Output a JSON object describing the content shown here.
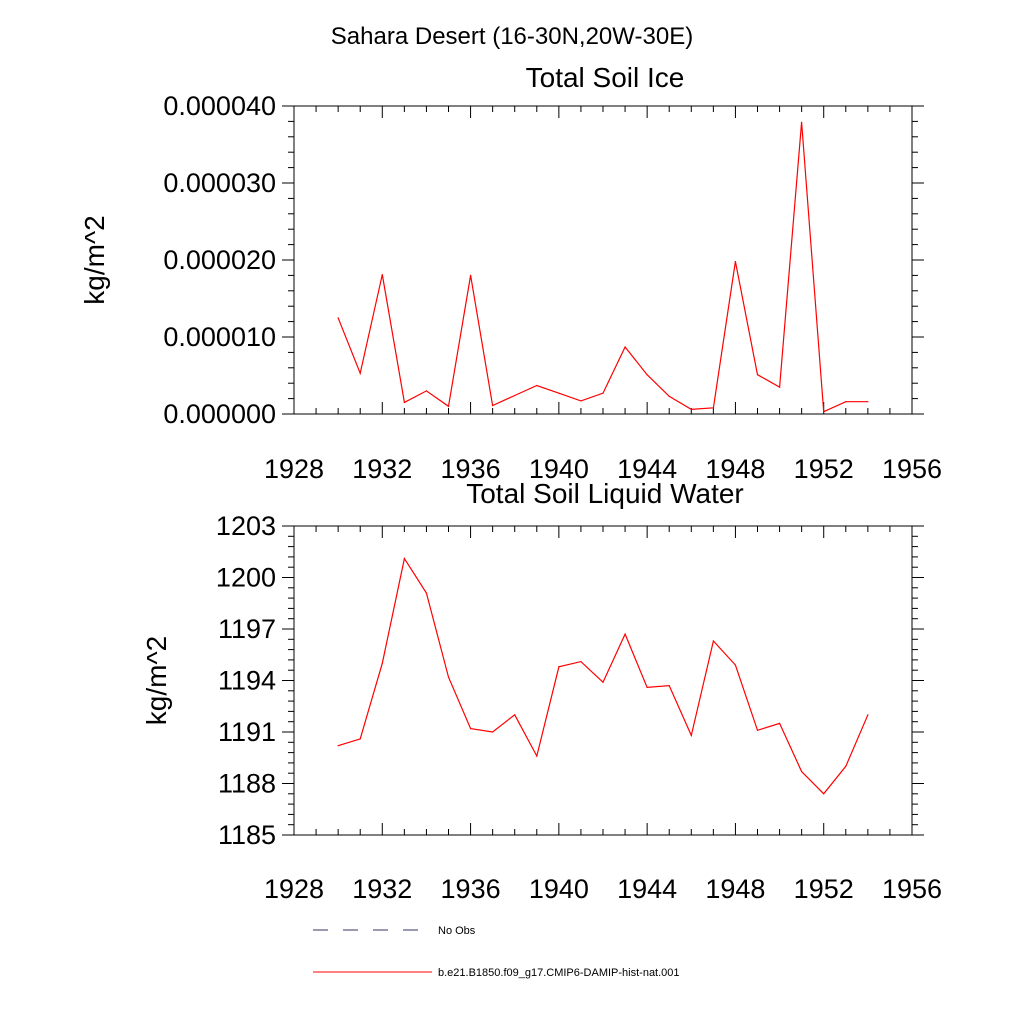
{
  "page_title": "Sahara Desert (16-30N,20W-30E)",
  "legend": {
    "items": [
      {
        "label": "No Obs",
        "style": "dashed",
        "color": "#333366"
      },
      {
        "label": "b.e21.B1850.f09_g17.CMIP6-DAMIP-hist-nat.001",
        "style": "solid",
        "color": "#ff0000"
      }
    ]
  },
  "chart_data": [
    {
      "type": "line",
      "title": "Total Soil Ice",
      "xlabel": "",
      "ylabel": "kg/m^2",
      "xlim": [
        1928,
        1956
      ],
      "ylim": [
        0.0,
        4e-05
      ],
      "x_ticks": [
        "1928",
        "1932",
        "1936",
        "1940",
        "1944",
        "1948",
        "1952",
        "1956"
      ],
      "y_ticks": [
        "0.000000",
        "0.000010",
        "0.000020",
        "0.000030",
        "0.000040"
      ],
      "grid": false,
      "series": [
        {
          "color": "#ff0000",
          "x": [
            1930,
            1931,
            1932,
            1933,
            1934,
            1935,
            1936,
            1937,
            1938,
            1939,
            1940,
            1941,
            1942,
            1943,
            1944,
            1945,
            1946,
            1947,
            1948,
            1949,
            1950,
            1951,
            1952,
            1953,
            1954
          ],
          "y": [
            1.25e-05,
            5.3e-06,
            1.81e-05,
            1.5e-06,
            3e-06,
            1e-06,
            1.8e-05,
            1.1e-06,
            2.4e-06,
            3.7e-06,
            2.7e-06,
            1.7e-06,
            2.7e-06,
            8.7e-06,
            5.1e-06,
            2.3e-06,
            6e-07,
            8e-07,
            1.98e-05,
            5.1e-06,
            3.5e-06,
            3.79e-05,
            3e-07,
            1.6e-06,
            1.6e-06
          ]
        }
      ]
    },
    {
      "type": "line",
      "title": "Total Soil Liquid Water",
      "xlabel": "",
      "ylabel": "kg/m^2",
      "xlim": [
        1928,
        1956
      ],
      "ylim": [
        1185,
        1203
      ],
      "x_ticks": [
        "1928",
        "1932",
        "1936",
        "1940",
        "1944",
        "1948",
        "1952",
        "1956"
      ],
      "y_ticks": [
        "1185",
        "1188",
        "1191",
        "1194",
        "1197",
        "1200",
        "1203"
      ],
      "grid": false,
      "series": [
        {
          "color": "#ff0000",
          "x": [
            1930,
            1931,
            1932,
            1933,
            1934,
            1935,
            1936,
            1937,
            1938,
            1939,
            1940,
            1941,
            1942,
            1943,
            1944,
            1945,
            1946,
            1947,
            1948,
            1949,
            1950,
            1951,
            1952,
            1953,
            1954
          ],
          "y": [
            1190.2,
            1190.6,
            1195.0,
            1201.1,
            1199.1,
            1194.2,
            1191.2,
            1191.0,
            1192.0,
            1189.6,
            1194.8,
            1195.1,
            1193.9,
            1196.7,
            1193.6,
            1193.7,
            1190.8,
            1196.3,
            1194.9,
            1191.1,
            1191.5,
            1188.7,
            1187.4,
            1189.0,
            1192.0
          ]
        }
      ]
    }
  ]
}
